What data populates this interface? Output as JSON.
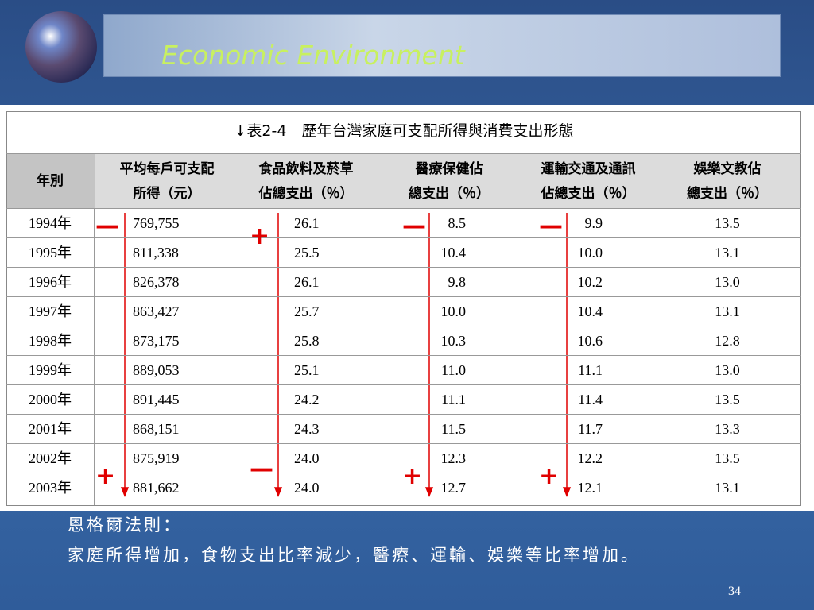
{
  "title": "Economic Environment",
  "table": {
    "caption": "↓表2-4　歷年台灣家庭可支配所得與消費支出形態",
    "headers": [
      [
        "年別"
      ],
      [
        "平均每戶可支配",
        "所得（元）"
      ],
      [
        "食品飲料及菸草",
        "佔總支出（％）"
      ],
      [
        "醫療保健佔",
        "總支出（％）"
      ],
      [
        "運輸交通及通訊",
        "佔總支出（％）"
      ],
      [
        "娛樂文教佔",
        "總支出（％）"
      ]
    ],
    "rows": [
      [
        "1994年",
        "769,755",
        "26.1",
        "8.5",
        "9.9",
        "13.5"
      ],
      [
        "1995年",
        "811,338",
        "25.5",
        "10.4",
        "10.0",
        "13.1"
      ],
      [
        "1996年",
        "826,378",
        "26.1",
        "9.8",
        "10.2",
        "13.0"
      ],
      [
        "1997年",
        "863,427",
        "25.7",
        "10.0",
        "10.4",
        "13.1"
      ],
      [
        "1998年",
        "873,175",
        "25.8",
        "10.3",
        "10.6",
        "12.8"
      ],
      [
        "1999年",
        "889,053",
        "25.1",
        "11.0",
        "11.1",
        "13.0"
      ],
      [
        "2000年",
        "891,445",
        "24.2",
        "11.1",
        "11.4",
        "13.5"
      ],
      [
        "2001年",
        "868,151",
        "24.3",
        "11.5",
        "11.7",
        "13.3"
      ],
      [
        "2002年",
        "875,919",
        "24.0",
        "12.3",
        "12.2",
        "13.5"
      ],
      [
        "2003年",
        "881,662",
        "24.0",
        "12.7",
        "12.1",
        "13.1"
      ]
    ]
  },
  "trend_signs": {
    "start": [
      "—",
      "+",
      "—",
      "—"
    ],
    "end": [
      "+",
      "—",
      "+",
      "+"
    ]
  },
  "notes": [
    "恩格爾法則：",
    "家庭所得增加，食物支出比率減少，醫療、運輸、娛樂等比率增加。"
  ],
  "page_number": "34"
}
